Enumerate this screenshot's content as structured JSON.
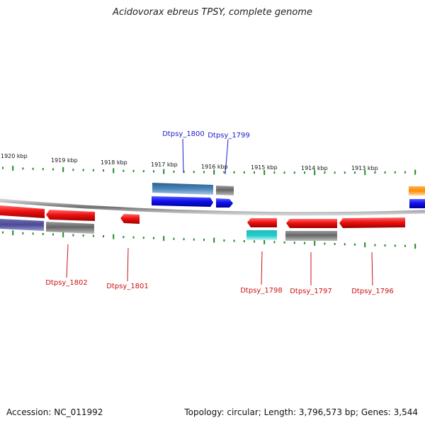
{
  "title": "Acidovorax ebreus TPSY, complete genome",
  "footer": {
    "accession": "Accession: NC_011992",
    "summary": "Topology: circular; Length: 3,796,573 bp; Genes: 3,544"
  },
  "scale_labels": [
    "1920 kbp",
    "1919 kbp",
    "1918 kbp",
    "1917 kbp",
    "1916 kbp",
    "1915 kbp",
    "1914 kbp",
    "1913 kbp"
  ],
  "gene_labels": {
    "dtpsy_1800": "Dtpsy_1800",
    "dtpsy_1799": "Dtpsy_1799",
    "dtpsy_1802": "Dtpsy_1802",
    "dtpsy_1801": "Dtpsy_1801",
    "dtpsy_1798": "Dtpsy_1798",
    "dtpsy_1797": "Dtpsy_1797",
    "dtpsy_1796": "Dtpsy_1796"
  },
  "colors": {
    "red": "#ee1111",
    "blue": "#1111ee",
    "steel_blue": "#4a86b8",
    "gray": "#666666",
    "cyan": "#22cccc",
    "slate_blue": "#4b4b96",
    "orange": "#ff8c00",
    "tick_green": "#228b22",
    "label_blue": "#1a1acc",
    "label_red": "#cc1111"
  }
}
